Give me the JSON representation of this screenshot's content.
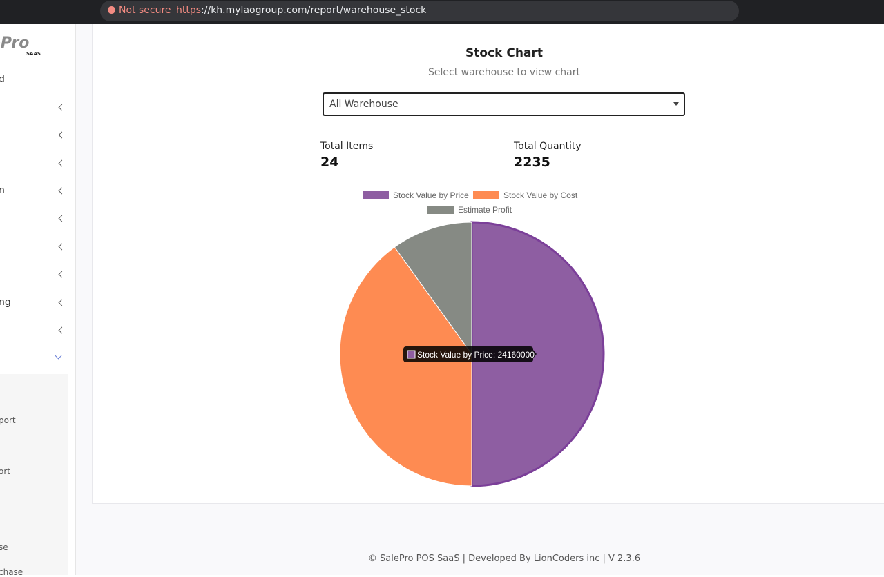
{
  "browser": {
    "security": "Not secure",
    "url_scheme": "https",
    "url_rest": "://kh.mylaogroup.com/report/warehouse_stock"
  },
  "sidebar": {
    "logo": "ePro",
    "logo_sub": "SAAS",
    "items": [
      "d",
      "n",
      "ng"
    ],
    "subitems": [
      "port",
      "ort",
      "se",
      "chase"
    ]
  },
  "page": {
    "title": "Stock Chart",
    "subtitle": "Select warehouse to view chart",
    "select": "All Warehouse",
    "stats": [
      {
        "label": "Total Items",
        "value": 24
      },
      {
        "label": "Total Quantity",
        "value": 2235
      }
    ]
  },
  "chart_data": {
    "type": "pie",
    "categories": [
      "Stock Value by Price",
      "Stock Value by Cost",
      "Estimate Profit"
    ],
    "values": [
      24160000,
      19360000,
      4800000
    ],
    "colors": [
      "#8e5ea2",
      "#fe8b52",
      "#868a84"
    ]
  },
  "footer": "© SalePro POS SaaS | Developed By LionCoders inc | V 2.3.6"
}
